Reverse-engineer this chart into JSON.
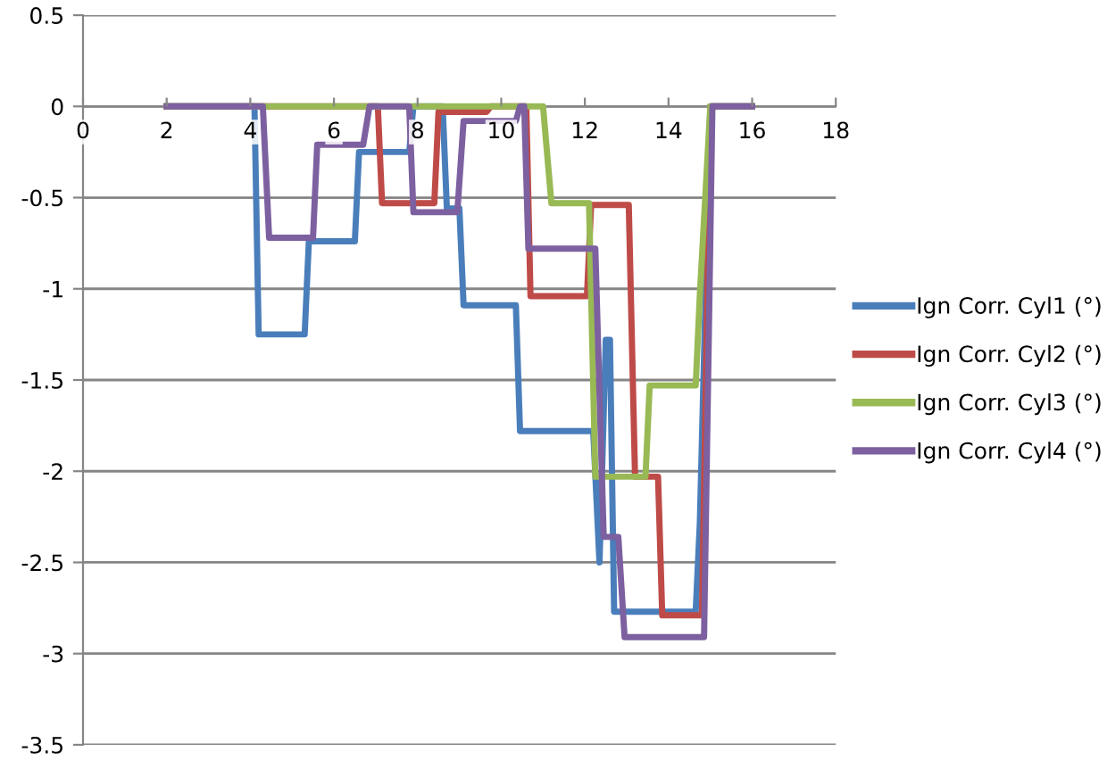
{
  "chart_data": {
    "type": "line",
    "xlim": [
      0,
      18
    ],
    "xticks": [
      0,
      2,
      4,
      6,
      8,
      10,
      12,
      14,
      16,
      18
    ],
    "ylim": [
      -3.5,
      0.5
    ],
    "yticks": [
      0.5,
      0,
      {
        "value": -0.5,
        "label": "-0.5"
      },
      {
        "value": -1,
        "label": "-1"
      },
      {
        "value": -1.5,
        "label": "-1.5"
      },
      {
        "value": -2,
        "label": "-2"
      },
      {
        "value": -2.5,
        "label": "-2.5"
      },
      {
        "value": -3,
        "label": "-3"
      },
      {
        "value": -3.5,
        "label": "-3.5"
      }
    ],
    "grid": "y",
    "legend": "right",
    "marker": "none",
    "line_style": "solid",
    "series": [
      {
        "name": "Ign Corr. Cyl1 (°)",
        "color": "#4a7ebb",
        "x": [
          2,
          4.1,
          4.2,
          5.3,
          5.4,
          6.5,
          6.6,
          7.8,
          7.9,
          8.6,
          8.7,
          9.0,
          9.1,
          10.35,
          10.45,
          12.2,
          12.35,
          12.5,
          12.6,
          12.7,
          14.65,
          14.75,
          15.0,
          16
        ],
        "values": [
          0,
          0,
          -1.25,
          -1.25,
          -0.74,
          -0.74,
          -0.25,
          -0.25,
          0,
          0,
          -0.56,
          -0.56,
          -1.09,
          -1.09,
          -1.78,
          -1.78,
          -2.5,
          -1.28,
          -1.28,
          -2.77,
          -2.77,
          -2.28,
          0,
          0
        ]
      },
      {
        "name": "Ign Corr. Cyl2 (°)",
        "color": "#be4b48",
        "x": [
          2,
          7.05,
          7.15,
          8.4,
          8.5,
          9.65,
          9.75,
          10.6,
          10.7,
          12.05,
          12.15,
          13.05,
          13.2,
          13.75,
          13.85,
          14.8,
          15.0,
          16
        ],
        "values": [
          0,
          0,
          -0.53,
          -0.53,
          -0.03,
          -0.03,
          0,
          0,
          -1.04,
          -1.04,
          -0.54,
          -0.54,
          -2.03,
          -2.03,
          -2.79,
          -2.79,
          0,
          0
        ]
      },
      {
        "name": "Ign Corr. Cyl3 (°)",
        "color": "#98b954",
        "x": [
          2,
          11.0,
          11.2,
          12.1,
          12.25,
          13.45,
          13.55,
          14.65,
          14.75,
          15.0,
          16
        ],
        "values": [
          0,
          0,
          -0.53,
          -0.53,
          -2.03,
          -2.03,
          -1.53,
          -1.53,
          -1.03,
          0,
          0
        ]
      },
      {
        "name": "Ign Corr. Cyl4 (°)",
        "color": "#7d60a0",
        "x": [
          2,
          4.3,
          4.45,
          5.5,
          5.6,
          6.7,
          6.85,
          7.8,
          7.9,
          8.95,
          9.1,
          10.35,
          10.45,
          10.55,
          10.65,
          12.25,
          12.45,
          12.8,
          12.95,
          14.85,
          15.05,
          16
        ],
        "values": [
          0,
          0,
          -0.72,
          -0.72,
          -0.21,
          -0.21,
          0,
          0,
          -0.58,
          -0.58,
          -0.08,
          -0.08,
          0,
          0,
          -0.78,
          -0.78,
          -2.36,
          -2.36,
          -2.91,
          -2.91,
          0,
          0
        ]
      }
    ]
  }
}
